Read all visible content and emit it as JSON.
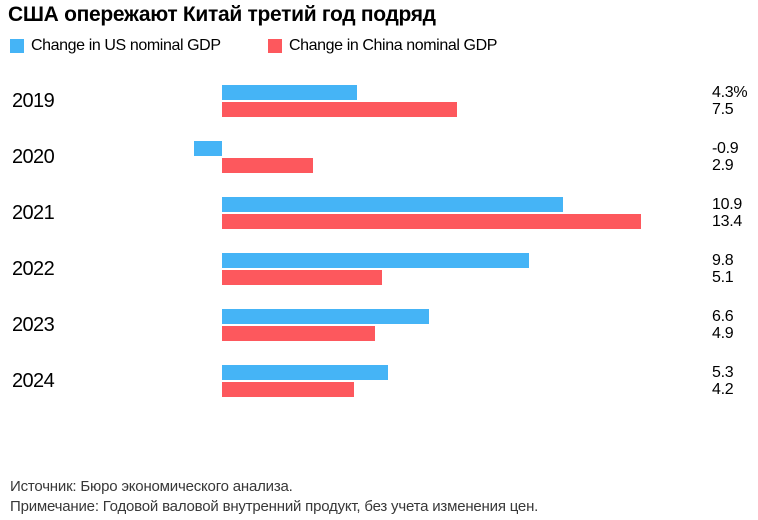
{
  "title": "США опережают Китай третий год подряд",
  "legend": [
    {
      "label": "Change in US nominal GDP",
      "color": "#45B4F6"
    },
    {
      "label": "Change in China nominal GDP",
      "color": "#FD585D"
    }
  ],
  "footer": {
    "source": "Источник: Бюро экономического анализа.",
    "note": "Примечание: Годовой валовой внутренний продукт, без учета изменения цен."
  },
  "chart_data": {
    "type": "bar",
    "orientation": "horizontal",
    "title": "США опережают Китай третий год подряд",
    "categories": [
      "2019",
      "2020",
      "2021",
      "2022",
      "2023",
      "2024"
    ],
    "series": [
      {
        "name": "Change in US nominal GDP",
        "color": "#45B4F6",
        "values": [
          4.3,
          -0.9,
          10.9,
          9.8,
          6.6,
          5.3
        ]
      },
      {
        "name": "Change in China nominal GDP",
        "color": "#FD585D",
        "values": [
          7.5,
          2.9,
          13.4,
          5.1,
          4.9,
          4.2
        ]
      }
    ],
    "value_labels": [
      [
        "4.3%",
        "7.5"
      ],
      [
        "-0.9",
        "2.9"
      ],
      [
        "10.9",
        "13.4"
      ],
      [
        "9.8",
        "5.1"
      ],
      [
        "6.6",
        "4.9"
      ],
      [
        "5.3",
        "4.2"
      ]
    ],
    "unit": "%",
    "xlim": [
      -0.9,
      13.4
    ],
    "grid": false,
    "legend_position": "top"
  }
}
